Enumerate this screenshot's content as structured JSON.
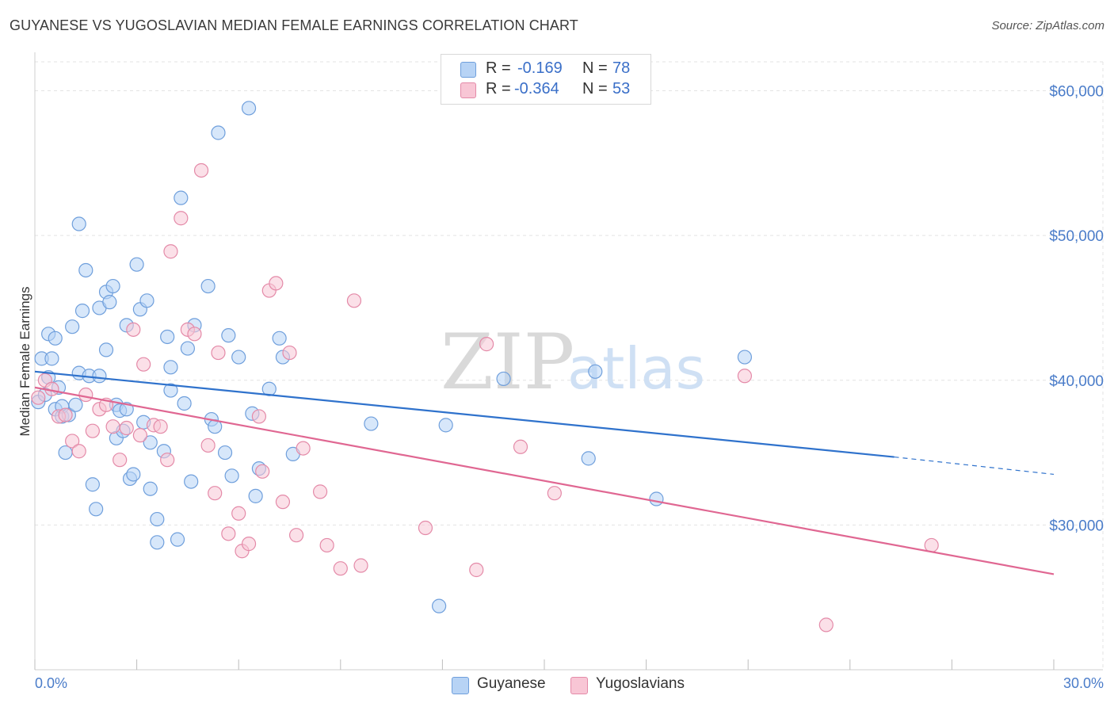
{
  "title": "GUYANESE VS YUGOSLAVIAN MEDIAN FEMALE EARNINGS CORRELATION CHART",
  "source": "Source: ZipAtlas.com",
  "watermark": {
    "zip": "ZIP",
    "atlas": "atlas"
  },
  "colors": {
    "guyanese_fill": "#b7d3f5",
    "guyanese_stroke": "#6f9fdc",
    "guyanese_line": "#2f72cc",
    "yugoslavian_fill": "#f8c6d5",
    "yugoslavian_stroke": "#e48aa8",
    "yugoslavian_line": "#e06792",
    "axis_label": "#4a7cc9"
  },
  "legend": {
    "rows": [
      {
        "r_label": "R =",
        "r_value": "-0.169",
        "n_label": "N =",
        "n_value": "78"
      },
      {
        "r_label": "R =",
        "r_value": "-0.364",
        "n_label": "N =",
        "n_value": "53"
      }
    ]
  },
  "bottom_legend": [
    "Guyanese",
    "Yugoslavians"
  ],
  "chart_data": {
    "type": "scatter",
    "xlabel": "",
    "ylabel": "Median Female Earnings",
    "xlim": [
      0,
      30
    ],
    "ylim": [
      20000,
      62000
    ],
    "x_tick_labels": [
      "0.0%",
      "30.0%"
    ],
    "y_ticks": [
      30000,
      40000,
      50000,
      60000
    ],
    "y_tick_labels": [
      "$30,000",
      "$40,000",
      "$50,000",
      "$60,000"
    ],
    "grid": true,
    "legend_position": "top-center",
    "series": [
      {
        "name": "Guyanese",
        "points": [
          [
            0.1,
            38500
          ],
          [
            0.2,
            41500
          ],
          [
            0.3,
            39000
          ],
          [
            0.4,
            40200
          ],
          [
            0.4,
            43200
          ],
          [
            0.5,
            41500
          ],
          [
            0.6,
            42900
          ],
          [
            0.6,
            38000
          ],
          [
            0.7,
            39500
          ],
          [
            0.8,
            37500
          ],
          [
            0.8,
            38200
          ],
          [
            0.9,
            35000
          ],
          [
            1.0,
            37600
          ],
          [
            1.1,
            43700
          ],
          [
            1.2,
            38300
          ],
          [
            1.3,
            40500
          ],
          [
            1.3,
            50800
          ],
          [
            1.4,
            44800
          ],
          [
            1.5,
            47600
          ],
          [
            1.6,
            40300
          ],
          [
            1.7,
            32800
          ],
          [
            1.8,
            31100
          ],
          [
            1.9,
            45000
          ],
          [
            1.9,
            40300
          ],
          [
            2.1,
            42100
          ],
          [
            2.1,
            46100
          ],
          [
            2.2,
            45400
          ],
          [
            2.3,
            46500
          ],
          [
            2.4,
            38300
          ],
          [
            2.4,
            36000
          ],
          [
            2.5,
            37900
          ],
          [
            2.6,
            36500
          ],
          [
            2.7,
            38000
          ],
          [
            2.7,
            43800
          ],
          [
            2.8,
            33200
          ],
          [
            2.9,
            33500
          ],
          [
            3.0,
            48000
          ],
          [
            3.1,
            44900
          ],
          [
            3.2,
            37100
          ],
          [
            3.3,
            45500
          ],
          [
            3.4,
            35700
          ],
          [
            3.4,
            32500
          ],
          [
            3.6,
            28800
          ],
          [
            3.6,
            30400
          ],
          [
            3.8,
            35100
          ],
          [
            3.9,
            43000
          ],
          [
            4.0,
            40900
          ],
          [
            4.0,
            39300
          ],
          [
            4.2,
            29000
          ],
          [
            4.3,
            52600
          ],
          [
            4.4,
            38400
          ],
          [
            4.5,
            42200
          ],
          [
            4.6,
            33000
          ],
          [
            4.7,
            43800
          ],
          [
            5.1,
            46500
          ],
          [
            5.2,
            37300
          ],
          [
            5.3,
            36800
          ],
          [
            5.4,
            57100
          ],
          [
            5.6,
            35000
          ],
          [
            5.7,
            43100
          ],
          [
            5.8,
            33400
          ],
          [
            6.0,
            41600
          ],
          [
            6.3,
            58800
          ],
          [
            6.4,
            37700
          ],
          [
            6.5,
            32000
          ],
          [
            6.6,
            33900
          ],
          [
            6.9,
            39400
          ],
          [
            7.2,
            42900
          ],
          [
            7.3,
            41600
          ],
          [
            7.6,
            34900
          ],
          [
            9.9,
            37000
          ],
          [
            11.9,
            24400
          ],
          [
            12.1,
            36900
          ],
          [
            13.8,
            40100
          ],
          [
            16.3,
            34600
          ],
          [
            16.5,
            40600
          ],
          [
            18.3,
            31800
          ],
          [
            20.9,
            41600
          ]
        ],
        "trend": {
          "x0": 0,
          "y0": 40600,
          "x1": 25.3,
          "y1": 34700,
          "x_dash_end": 30,
          "y_dash_end": 33500
        }
      },
      {
        "name": "Yugoslavians",
        "points": [
          [
            0.1,
            38800
          ],
          [
            0.3,
            40000
          ],
          [
            0.5,
            39400
          ],
          [
            0.7,
            37500
          ],
          [
            0.9,
            37600
          ],
          [
            1.1,
            35800
          ],
          [
            1.3,
            35100
          ],
          [
            1.5,
            39000
          ],
          [
            1.7,
            36500
          ],
          [
            1.9,
            38000
          ],
          [
            2.1,
            38300
          ],
          [
            2.3,
            36800
          ],
          [
            2.5,
            34500
          ],
          [
            2.7,
            36700
          ],
          [
            2.9,
            43500
          ],
          [
            3.1,
            36200
          ],
          [
            3.2,
            41100
          ],
          [
            3.5,
            36900
          ],
          [
            3.7,
            36800
          ],
          [
            3.9,
            34500
          ],
          [
            4.0,
            48900
          ],
          [
            4.3,
            51200
          ],
          [
            4.5,
            43500
          ],
          [
            4.7,
            43200
          ],
          [
            4.9,
            54500
          ],
          [
            5.1,
            35500
          ],
          [
            5.3,
            32200
          ],
          [
            5.4,
            41900
          ],
          [
            5.7,
            29400
          ],
          [
            6.0,
            30800
          ],
          [
            6.1,
            28200
          ],
          [
            6.3,
            28700
          ],
          [
            6.6,
            37500
          ],
          [
            6.7,
            33700
          ],
          [
            6.9,
            46200
          ],
          [
            7.1,
            46700
          ],
          [
            7.3,
            31600
          ],
          [
            7.5,
            41900
          ],
          [
            7.7,
            29300
          ],
          [
            7.9,
            35300
          ],
          [
            8.4,
            32300
          ],
          [
            8.6,
            28600
          ],
          [
            9.0,
            27000
          ],
          [
            9.4,
            45500
          ],
          [
            9.6,
            27200
          ],
          [
            11.5,
            29800
          ],
          [
            13.0,
            26900
          ],
          [
            13.3,
            42500
          ],
          [
            14.3,
            35400
          ],
          [
            15.3,
            32200
          ],
          [
            20.9,
            40300
          ],
          [
            23.3,
            23100
          ],
          [
            26.4,
            28600
          ]
        ],
        "trend": {
          "x0": 0,
          "y0": 39500,
          "x1": 30,
          "y1": 26600
        }
      }
    ]
  }
}
